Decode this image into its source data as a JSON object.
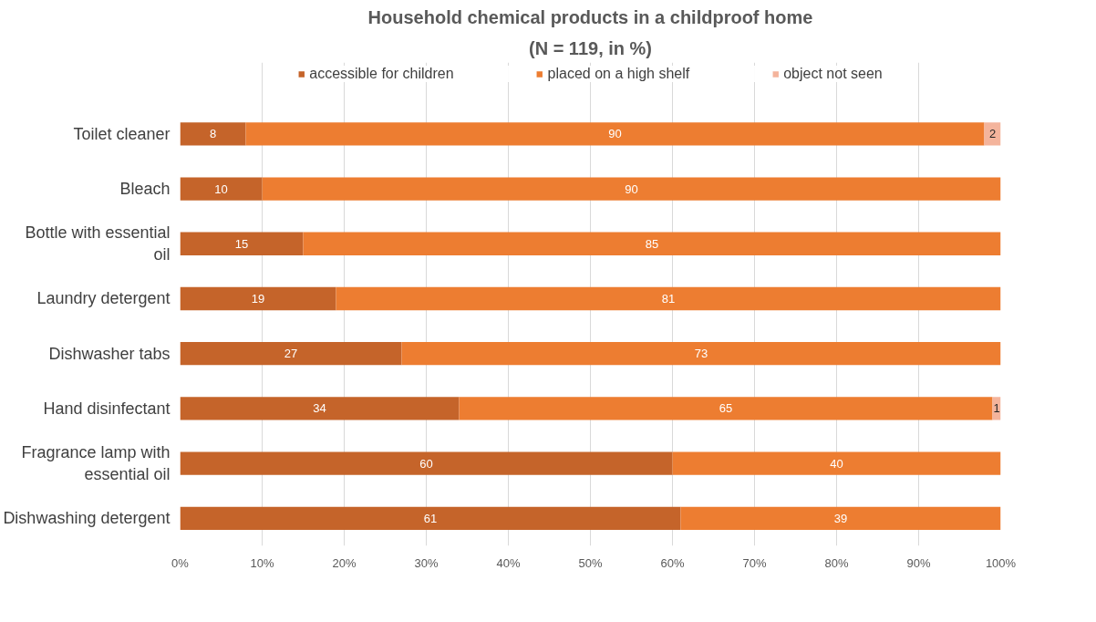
{
  "chart_data": {
    "type": "bar",
    "orientation": "horizontal",
    "stacked": true,
    "title": "Household chemical products in a childproof home",
    "subtitle": "(N = 119, in %)",
    "categories": [
      "Toilet cleaner",
      "Bleach",
      "Bottle with essential oil",
      "Laundry detergent",
      "Dishwasher tabs",
      "Hand disinfectant",
      "Fragrance lamp with essential oil",
      "Dishwashing detergent"
    ],
    "series": [
      {
        "name": "accessible for children",
        "color": "#c5642a",
        "values": [
          8,
          10,
          15,
          19,
          27,
          34,
          60,
          61
        ],
        "value_labels": [
          "8",
          "10",
          "15",
          "19",
          "27",
          "34",
          "60",
          "61"
        ]
      },
      {
        "name": "placed on a high shelf",
        "color": "#ed7d31",
        "values": [
          90,
          90,
          85,
          81,
          73,
          65,
          40,
          39
        ],
        "value_labels": [
          "90",
          "90",
          "85",
          "81",
          "73",
          "65",
          "40",
          "39"
        ]
      },
      {
        "name": "object not seen",
        "color": "#f4b49c",
        "values": [
          2,
          0,
          0,
          0,
          0,
          1,
          0,
          0
        ],
        "value_labels": [
          "2",
          null,
          null,
          null,
          null,
          "1",
          null,
          null
        ]
      }
    ],
    "xlim": [
      0,
      100
    ],
    "xticks": [
      {
        "value": 0,
        "label": "0%"
      },
      {
        "value": 10,
        "label": "10%"
      },
      {
        "value": 20,
        "label": "20%"
      },
      {
        "value": 30,
        "label": "30%"
      },
      {
        "value": 40,
        "label": "40%"
      },
      {
        "value": 50,
        "label": "50%"
      },
      {
        "value": 60,
        "label": "60%"
      },
      {
        "value": 70,
        "label": "70%"
      },
      {
        "value": 80,
        "label": "80%"
      },
      {
        "value": 90,
        "label": "90%"
      },
      {
        "value": 100,
        "label": "100%"
      }
    ],
    "grid": "x",
    "legend": "top"
  }
}
